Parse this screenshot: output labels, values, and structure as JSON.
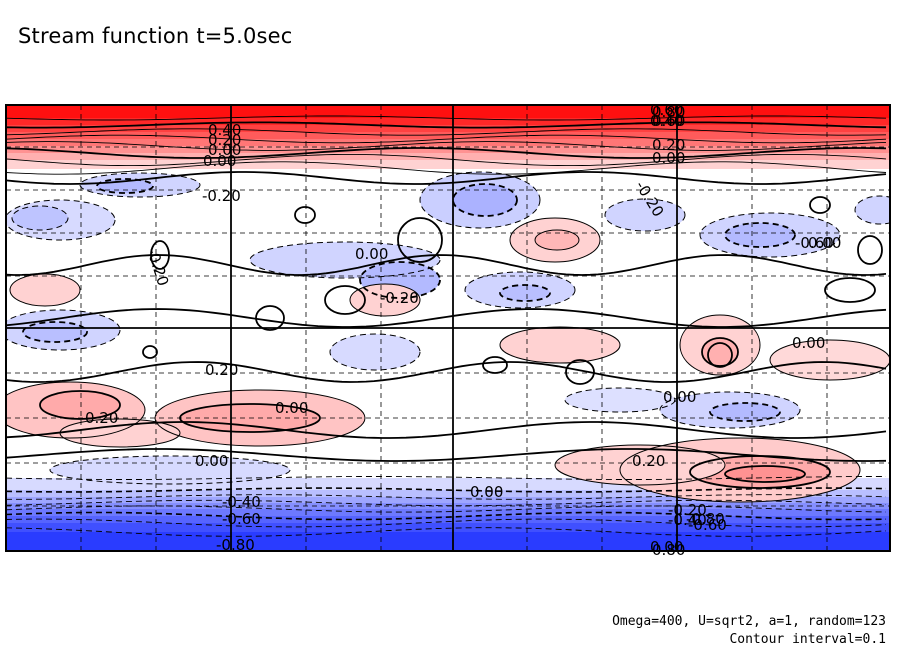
{
  "chart_data": {
    "type": "contour",
    "title": "Stream function t=5.0sec",
    "field": "stream function",
    "time": "t=5.0sec",
    "contour_interval": 0.1,
    "value_range": [
      -0.8,
      0.8
    ],
    "colormap": {
      "negative": "#2a3cff",
      "zero": "#ffffff",
      "positive": "#ff1010"
    },
    "grid": true,
    "labeled_contours": [
      "0.80",
      "0.60",
      "0.40",
      "0.20",
      "0.00",
      "-0.20",
      "-0.40",
      "-0.60",
      "-0.80",
      "0.80",
      "0.60",
      "0.40",
      "0.20",
      "0.00",
      "0.00",
      "-0.20",
      "0.00",
      "-0.20",
      "0.00",
      "0.00",
      "0.20",
      "0.20",
      "0.00",
      "0.00",
      "0.00",
      "0.20",
      "-0.20",
      "-0.40",
      "-0.60",
      "0.00",
      "-0.20",
      "-0.60",
      "-0.80",
      "0.00"
    ],
    "annotations": [
      "Omega=400, U=sqrt2, a=1, random=123",
      "Contour interval=0.1"
    ]
  },
  "footnotes": {
    "params": "Omega=400, U=sqrt2, a=1, random=123",
    "interval": "Contour interval=0.1"
  }
}
